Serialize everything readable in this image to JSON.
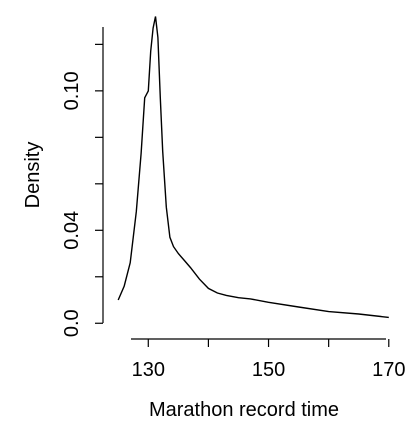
{
  "chart_data": {
    "type": "line",
    "title": "",
    "xlabel": "Marathon record time",
    "ylabel": "Density",
    "xlim": [
      123.8,
      171.2
    ],
    "ylim": [
      -0.00075,
      0.1335
    ],
    "xticks": [
      130,
      150,
      170
    ],
    "xtick_labels": [
      "130",
      "150",
      "170"
    ],
    "yticks": [
      0.0,
      0.04,
      0.1
    ],
    "ytick_labels": [
      "0.0",
      "0.04",
      "0.10"
    ],
    "grid": false,
    "legend": "none",
    "line_color": "#000000",
    "series": [
      {
        "x": [
          125.0,
          126.0,
          127.0,
          128.0,
          128.8,
          129.4,
          130.0,
          130.4,
          130.8,
          131.2,
          131.6,
          132.0,
          132.4,
          133.0,
          133.6,
          134.2,
          135.0,
          136.0,
          137.0,
          138.5,
          140.0,
          141.5,
          143.0,
          145.0,
          147.0,
          150.0,
          155.0,
          160.0,
          165.0,
          170.0
        ],
        "y": [
          0.01,
          0.016,
          0.026,
          0.048,
          0.073,
          0.097,
          0.1,
          0.117,
          0.127,
          0.132,
          0.123,
          0.097,
          0.074,
          0.05,
          0.037,
          0.033,
          0.03,
          0.027,
          0.024,
          0.019,
          0.015,
          0.013,
          0.012,
          0.011,
          0.0105,
          0.009,
          0.007,
          0.005,
          0.004,
          0.0025
        ]
      }
    ]
  }
}
